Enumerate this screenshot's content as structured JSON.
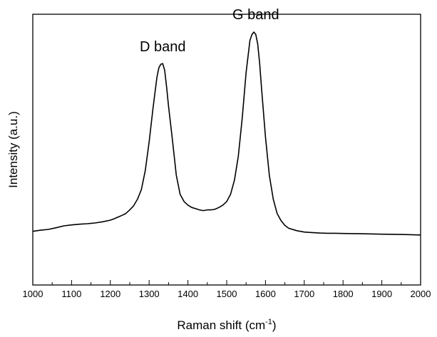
{
  "chart_data": {
    "type": "line",
    "title": "",
    "xlabel": {
      "text": "Raman shift (cm",
      "sup": "-1",
      "close": ")"
    },
    "ylabel": "Intensity (a.u.)",
    "xlim": [
      1000,
      2000
    ],
    "ylim": [
      0,
      1
    ],
    "x_ticks": [
      1000,
      1100,
      1200,
      1300,
      1400,
      1500,
      1600,
      1700,
      1800,
      1900,
      2000
    ],
    "x_tick_labels": [
      "1000",
      "1100",
      "1200",
      "1300",
      "1400",
      "1500",
      "1600",
      "1700",
      "1800",
      "1900",
      "2000"
    ],
    "x_minor_step": 50,
    "y_ticks_shown": false,
    "grid": false,
    "legend": "none",
    "line_color": "#000000",
    "annotations": [
      {
        "text": "D band",
        "x": 1335,
        "y": 0.865
      },
      {
        "text": "G band",
        "x": 1575,
        "y": 1.0
      }
    ],
    "series": [
      {
        "x": [
          1000,
          1020,
          1040,
          1060,
          1080,
          1100,
          1120,
          1140,
          1160,
          1180,
          1200,
          1210,
          1220,
          1230,
          1240,
          1250,
          1260,
          1270,
          1280,
          1290,
          1300,
          1310,
          1320,
          1325,
          1330,
          1335,
          1340,
          1345,
          1350,
          1360,
          1370,
          1380,
          1390,
          1400,
          1410,
          1420,
          1430,
          1440,
          1450,
          1460,
          1470,
          1480,
          1490,
          1500,
          1510,
          1520,
          1530,
          1540,
          1550,
          1560,
          1565,
          1570,
          1575,
          1580,
          1585,
          1590,
          1600,
          1610,
          1620,
          1630,
          1640,
          1650,
          1660,
          1680,
          1700,
          1720,
          1740,
          1760,
          1780,
          1800,
          1850,
          1900,
          1950,
          2000
        ],
        "y": [
          0.165,
          0.17,
          0.173,
          0.18,
          0.188,
          0.192,
          0.195,
          0.197,
          0.2,
          0.205,
          0.212,
          0.218,
          0.225,
          0.232,
          0.24,
          0.255,
          0.272,
          0.3,
          0.34,
          0.42,
          0.54,
          0.68,
          0.81,
          0.85,
          0.865,
          0.868,
          0.84,
          0.77,
          0.69,
          0.55,
          0.4,
          0.32,
          0.29,
          0.275,
          0.265,
          0.26,
          0.255,
          0.252,
          0.255,
          0.255,
          0.258,
          0.265,
          0.275,
          0.29,
          0.32,
          0.38,
          0.48,
          0.64,
          0.83,
          0.965,
          0.99,
          1.0,
          0.99,
          0.95,
          0.87,
          0.76,
          0.56,
          0.4,
          0.3,
          0.24,
          0.21,
          0.19,
          0.178,
          0.168,
          0.162,
          0.16,
          0.158,
          0.157,
          0.157,
          0.156,
          0.155,
          0.153,
          0.152,
          0.15
        ]
      }
    ]
  }
}
